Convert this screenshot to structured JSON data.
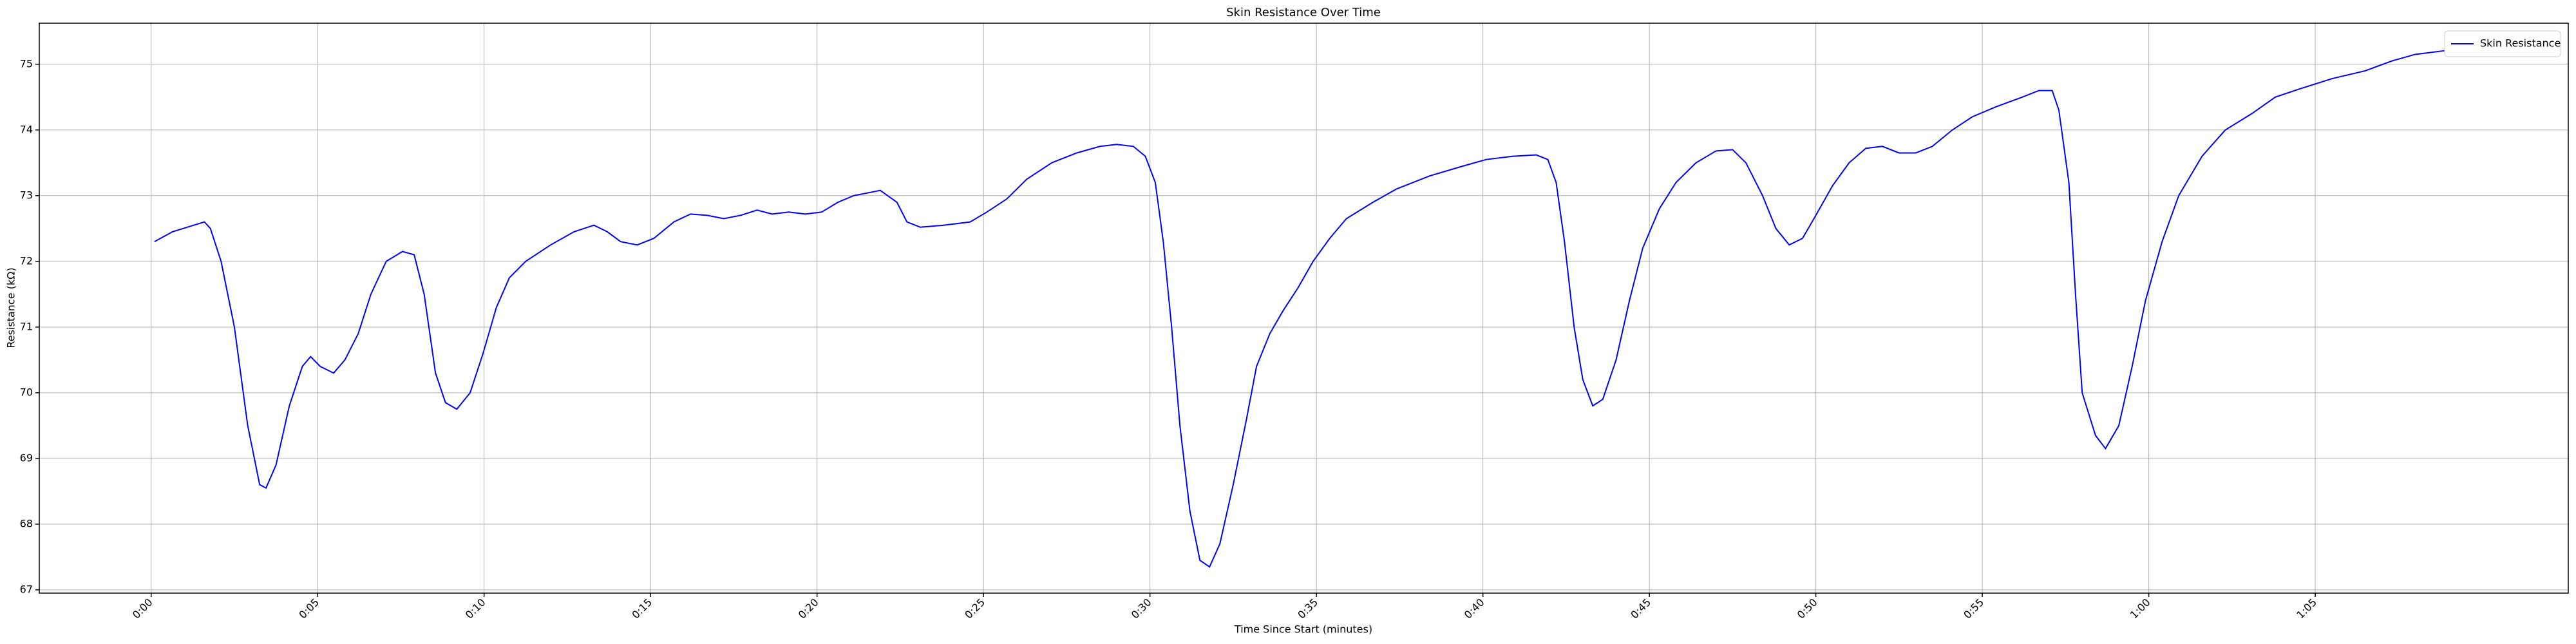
{
  "chart_data": {
    "type": "line",
    "title": "Skin Resistance Over Time",
    "x_label": "Time Since Start (minutes)",
    "y_label": "Resistance (kΩ)",
    "x": [
      0.1,
      0.64,
      1.28,
      1.6,
      1.78,
      2.1,
      2.5,
      2.9,
      3.26,
      3.45,
      3.75,
      4.15,
      4.54,
      4.79,
      5.08,
      5.48,
      5.82,
      6.22,
      6.6,
      7.06,
      7.55,
      7.9,
      8.2,
      8.54,
      8.84,
      9.18,
      9.58,
      9.97,
      10.37,
      10.76,
      11.25,
      12.0,
      12.7,
      13.3,
      13.7,
      14.1,
      14.6,
      15.1,
      15.7,
      16.2,
      16.7,
      17.2,
      17.7,
      18.2,
      18.65,
      19.15,
      19.65,
      20.14,
      20.63,
      21.1,
      21.9,
      22.4,
      22.7,
      23.1,
      23.8,
      24.6,
      25.1,
      25.7,
      26.3,
      27.05,
      27.8,
      28.5,
      29.0,
      29.5,
      29.86,
      30.16,
      30.4,
      30.65,
      30.9,
      31.2,
      31.5,
      31.79,
      32.1,
      32.5,
      32.9,
      33.2,
      33.6,
      34.0,
      34.45,
      34.9,
      35.4,
      35.9,
      36.7,
      37.4,
      38.4,
      39.4,
      40.1,
      40.9,
      41.6,
      41.95,
      42.2,
      42.45,
      42.74,
      43.0,
      43.3,
      43.6,
      44.0,
      44.4,
      44.8,
      45.3,
      45.8,
      46.4,
      47.0,
      47.5,
      47.9,
      48.4,
      48.8,
      49.2,
      49.6,
      50.0,
      50.5,
      51.0,
      51.5,
      52.0,
      52.5,
      53.0,
      53.5,
      54.1,
      54.7,
      55.4,
      56.2,
      56.7,
      57.1,
      57.3,
      57.6,
      57.8,
      58.0,
      58.4,
      58.7,
      59.1,
      59.5,
      59.9,
      60.4,
      60.9,
      61.6,
      62.3,
      63.1,
      63.8,
      64.5,
      65.5,
      66.5,
      67.3,
      68.0,
      69.1
    ],
    "series": [
      {
        "name": "Skin Resistance",
        "color": "#0000ff",
        "values": [
          72.3,
          72.45,
          72.55,
          72.6,
          72.5,
          72.0,
          71.0,
          69.5,
          68.6,
          68.55,
          68.9,
          69.8,
          70.4,
          70.55,
          70.4,
          70.3,
          70.5,
          70.9,
          71.5,
          72.0,
          72.15,
          72.1,
          71.5,
          70.3,
          69.85,
          69.75,
          70.0,
          70.6,
          71.3,
          71.75,
          72.0,
          72.25,
          72.45,
          72.55,
          72.45,
          72.3,
          72.25,
          72.35,
          72.6,
          72.72,
          72.7,
          72.65,
          72.7,
          72.78,
          72.72,
          72.75,
          72.72,
          72.75,
          72.9,
          73.0,
          73.08,
          72.9,
          72.6,
          72.52,
          72.55,
          72.6,
          72.75,
          72.95,
          73.25,
          73.5,
          73.65,
          73.75,
          73.78,
          73.75,
          73.6,
          73.2,
          72.3,
          71.0,
          69.5,
          68.2,
          67.45,
          67.35,
          67.7,
          68.6,
          69.6,
          70.4,
          70.9,
          71.25,
          71.6,
          72.0,
          72.35,
          72.65,
          72.9,
          73.1,
          73.3,
          73.45,
          73.55,
          73.6,
          73.62,
          73.55,
          73.2,
          72.3,
          71.0,
          70.2,
          69.8,
          69.9,
          70.5,
          71.4,
          72.2,
          72.8,
          73.2,
          73.5,
          73.68,
          73.7,
          73.5,
          73.0,
          72.5,
          72.25,
          72.35,
          72.7,
          73.15,
          73.5,
          73.72,
          73.75,
          73.65,
          73.65,
          73.75,
          74.0,
          74.2,
          74.35,
          74.5,
          74.6,
          74.6,
          74.3,
          73.2,
          71.5,
          70.0,
          69.35,
          69.15,
          69.5,
          70.4,
          71.4,
          72.3,
          73.0,
          73.6,
          74.0,
          74.25,
          74.5,
          74.62,
          74.78,
          74.9,
          75.05,
          75.15,
          75.22
        ]
      }
    ],
    "xlim": [
      -3.36,
      72.6
    ],
    "ylim": [
      66.95,
      75.625
    ],
    "xticks": [
      {
        "value": 0,
        "label": "0:00"
      },
      {
        "value": 5,
        "label": "0:05"
      },
      {
        "value": 10,
        "label": "0:10"
      },
      {
        "value": 15,
        "label": "0:15"
      },
      {
        "value": 20,
        "label": "0:20"
      },
      {
        "value": 25,
        "label": "0:25"
      },
      {
        "value": 30,
        "label": "0:30"
      },
      {
        "value": 35,
        "label": "0:35"
      },
      {
        "value": 40,
        "label": "0:40"
      },
      {
        "value": 45,
        "label": "0:45"
      },
      {
        "value": 50,
        "label": "0:50"
      },
      {
        "value": 55,
        "label": "0:55"
      },
      {
        "value": 60,
        "label": "1:00"
      },
      {
        "value": 65,
        "label": "1:05"
      }
    ],
    "yticks": [
      67,
      68,
      69,
      70,
      71,
      72,
      73,
      74,
      75
    ],
    "grid": true,
    "legend": "upper right"
  }
}
